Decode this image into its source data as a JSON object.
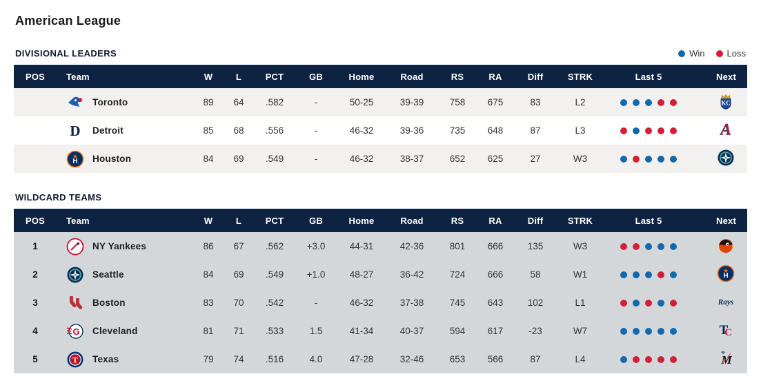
{
  "page": {
    "title": "American League"
  },
  "theme": {
    "header_bg": "#0e2342",
    "alt_row_bg": "#f2f1ef",
    "wildcard_highlight_bg": "#d3d7da",
    "win_color": "#1268ad",
    "loss_color": "#d31f35"
  },
  "legend": {
    "win_label": "Win",
    "loss_label": "Loss"
  },
  "columns": [
    "POS",
    "Team",
    "W",
    "L",
    "PCT",
    "GB",
    "Home",
    "Road",
    "RS",
    "RA",
    "Diff",
    "STRK",
    "Last 5",
    "Next"
  ],
  "sections": [
    {
      "title": "DIVISIONAL LEADERS",
      "show_legend": true,
      "rows": [
        {
          "pos": "",
          "team": "Toronto",
          "logo": "blue-jays",
          "w": "89",
          "l": "64",
          "pct": ".582",
          "gb": "-",
          "home": "50-25",
          "road": "39-39",
          "rs": "758",
          "ra": "675",
          "diff": "83",
          "strk": "L2",
          "last5": [
            "W",
            "W",
            "W",
            "L",
            "L"
          ],
          "next": "royals",
          "highlight": false
        },
        {
          "pos": "",
          "team": "Detroit",
          "logo": "tigers",
          "w": "85",
          "l": "68",
          "pct": ".556",
          "gb": "-",
          "home": "46-32",
          "road": "39-36",
          "rs": "735",
          "ra": "648",
          "diff": "87",
          "strk": "L3",
          "last5": [
            "L",
            "W",
            "L",
            "L",
            "L"
          ],
          "next": "braves",
          "highlight": false
        },
        {
          "pos": "",
          "team": "Houston",
          "logo": "astros",
          "w": "84",
          "l": "69",
          "pct": ".549",
          "gb": "-",
          "home": "46-32",
          "road": "38-37",
          "rs": "652",
          "ra": "625",
          "diff": "27",
          "strk": "W3",
          "last5": [
            "W",
            "L",
            "W",
            "W",
            "W"
          ],
          "next": "mariners",
          "highlight": false
        }
      ]
    },
    {
      "title": "WILDCARD TEAMS",
      "show_legend": false,
      "rows": [
        {
          "pos": "1",
          "team": "NY Yankees",
          "logo": "yankees",
          "w": "86",
          "l": "67",
          "pct": ".562",
          "gb": "+3.0",
          "home": "44-31",
          "road": "42-36",
          "rs": "801",
          "ra": "666",
          "diff": "135",
          "strk": "W3",
          "last5": [
            "L",
            "L",
            "W",
            "W",
            "W"
          ],
          "next": "orioles",
          "highlight": true
        },
        {
          "pos": "2",
          "team": "Seattle",
          "logo": "mariners",
          "w": "84",
          "l": "69",
          "pct": ".549",
          "gb": "+1.0",
          "home": "48-27",
          "road": "36-42",
          "rs": "724",
          "ra": "666",
          "diff": "58",
          "strk": "W1",
          "last5": [
            "W",
            "W",
            "W",
            "L",
            "W"
          ],
          "next": "astros",
          "highlight": true
        },
        {
          "pos": "3",
          "team": "Boston",
          "logo": "red-sox",
          "w": "83",
          "l": "70",
          "pct": ".542",
          "gb": "-",
          "home": "46-32",
          "road": "37-38",
          "rs": "745",
          "ra": "643",
          "diff": "102",
          "strk": "L1",
          "last5": [
            "L",
            "W",
            "L",
            "W",
            "L"
          ],
          "next": "rays",
          "highlight": true
        },
        {
          "pos": "4",
          "team": "Cleveland",
          "logo": "guardians",
          "w": "81",
          "l": "71",
          "pct": ".533",
          "gb": "1.5",
          "home": "41-34",
          "road": "40-37",
          "rs": "594",
          "ra": "617",
          "diff": "-23",
          "strk": "W7",
          "last5": [
            "W",
            "W",
            "W",
            "W",
            "W"
          ],
          "next": "twins",
          "highlight": true
        },
        {
          "pos": "5",
          "team": "Texas",
          "logo": "rangers",
          "w": "79",
          "l": "74",
          "pct": ".516",
          "gb": "4.0",
          "home": "47-28",
          "road": "32-46",
          "rs": "653",
          "ra": "566",
          "diff": "87",
          "strk": "L4",
          "last5": [
            "W",
            "L",
            "L",
            "L",
            "L"
          ],
          "next": "marlins",
          "highlight": true
        }
      ]
    }
  ]
}
